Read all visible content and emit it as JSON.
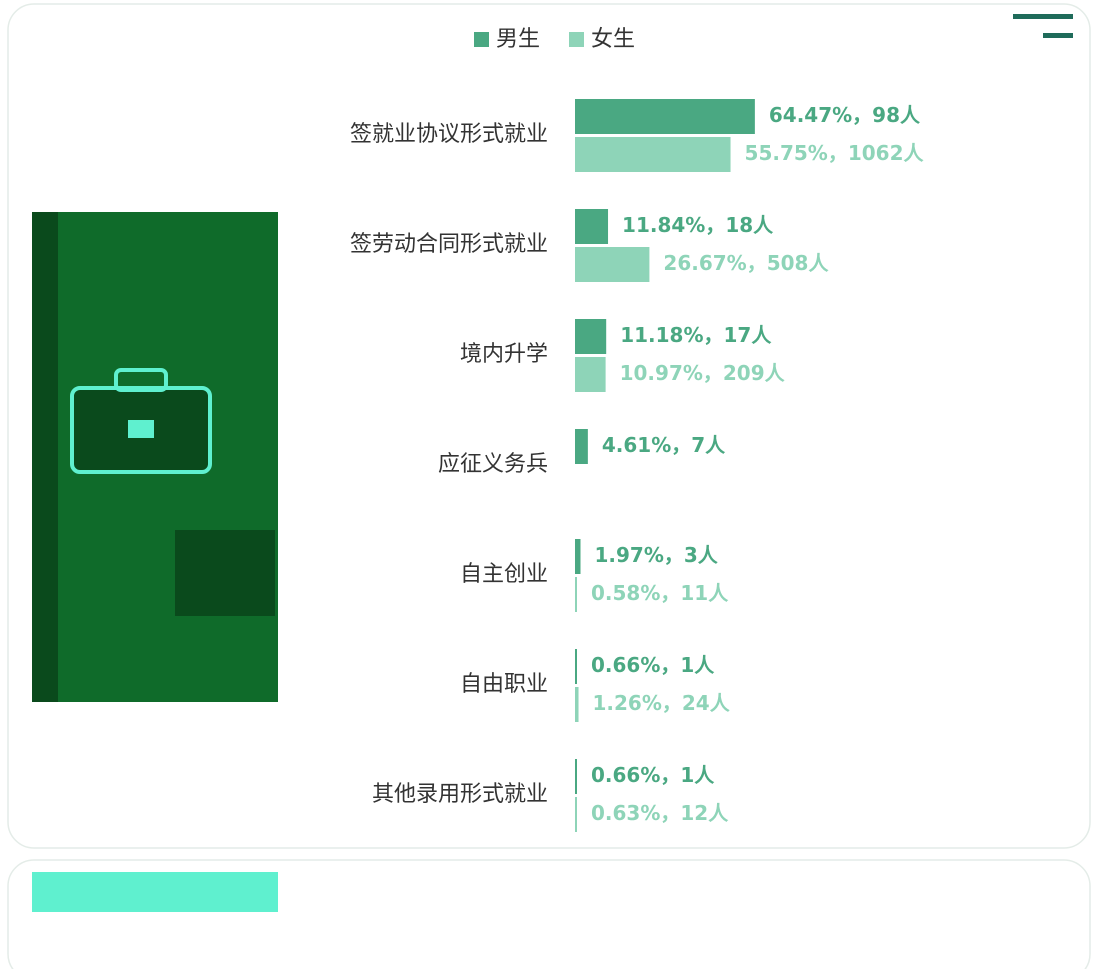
{
  "chart_data": {
    "type": "hbar",
    "categories": [
      "签就业协议形式就业",
      "签劳动合同形式就业",
      "境内升学",
      "应征义务兵",
      "自主创业",
      "自由职业",
      "其他录用形式就业"
    ],
    "series": [
      {
        "name": "男生",
        "color": "#4aa882",
        "values": [
          64.47,
          11.84,
          11.18,
          4.61,
          1.97,
          0.66,
          0.66
        ],
        "value_labels": [
          "64.47%，98人",
          "11.84%，18人",
          "11.18%，17人",
          "4.61%，7人",
          "1.97%，3人",
          "0.66%，1人",
          "0.66%，1人"
        ]
      },
      {
        "name": "女生",
        "color": "#8ed4b8",
        "values": [
          55.75,
          26.67,
          10.97,
          null,
          0.58,
          1.26,
          0.63
        ],
        "value_labels": [
          "55.75%，1062人",
          "26.67%，508人",
          "10.97%，209人",
          null,
          "0.58%，11人",
          "1.26%，24人",
          "0.63%，12人"
        ]
      }
    ]
  }
}
